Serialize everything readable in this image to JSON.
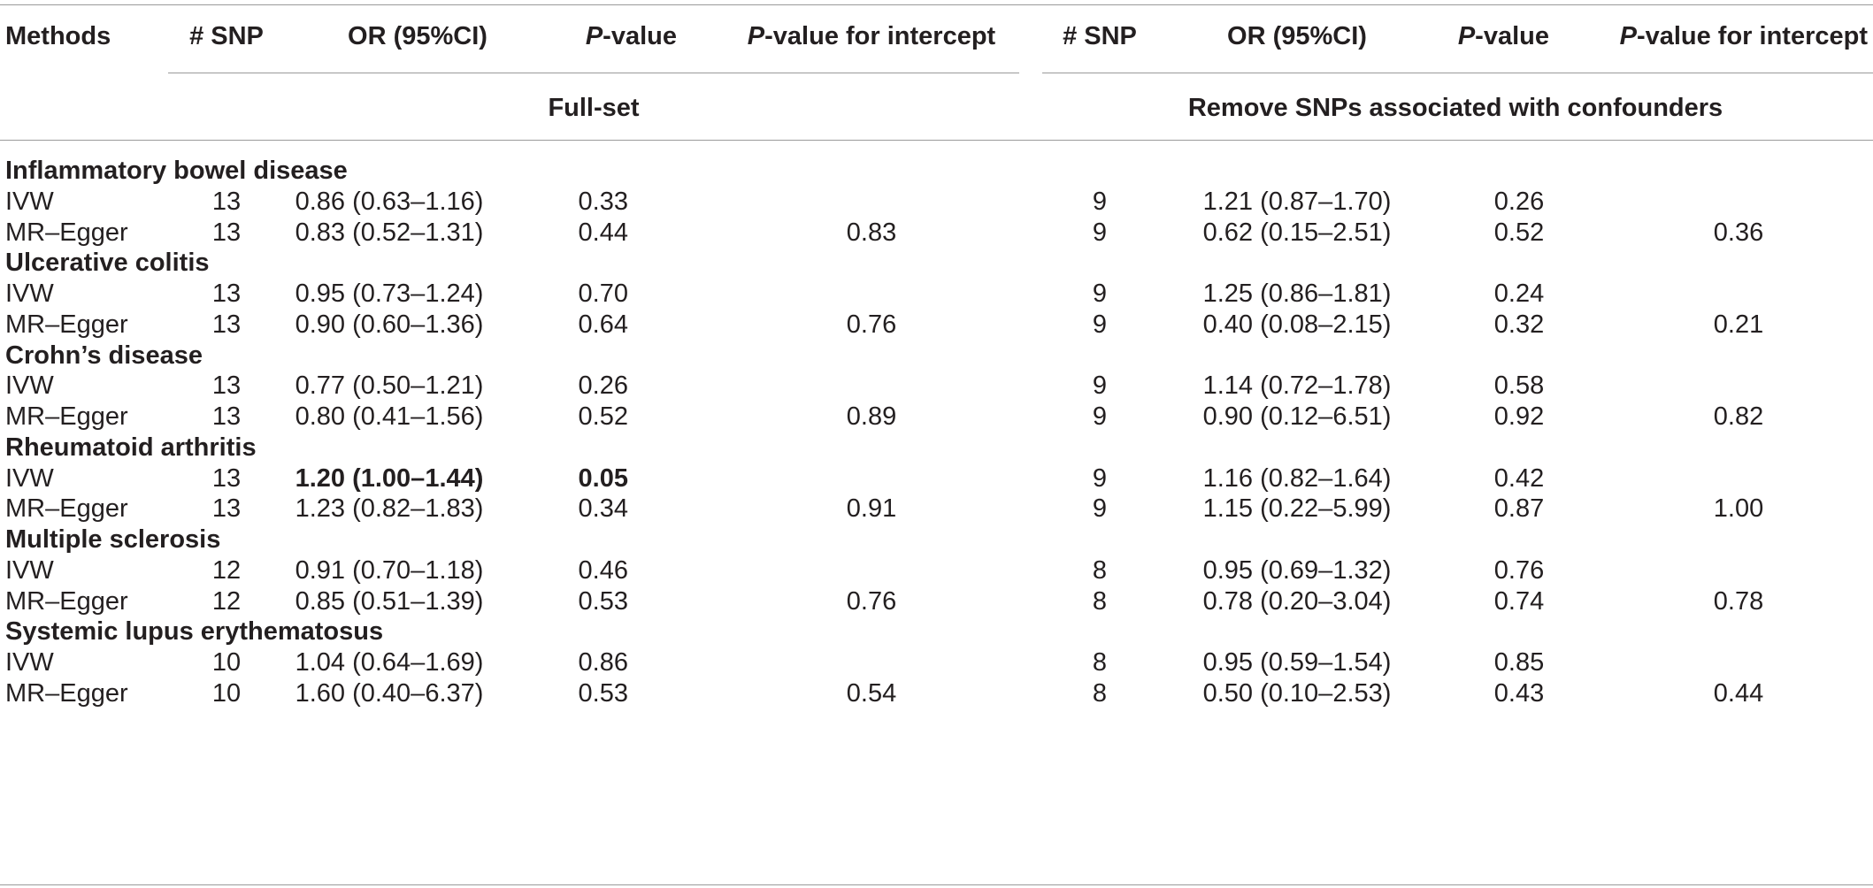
{
  "table": {
    "columns": {
      "methods": "Methods",
      "snp": "# SNP",
      "or": "OR (95%CI)",
      "p_italic": "P",
      "p_rest": "-value",
      "pint_italic": "P",
      "pint_rest": "-value for intercept"
    },
    "groups": {
      "left": "Full-set",
      "right": "Remove SNPs associated with confounders"
    },
    "sections": [
      {
        "title": "Inflammatory bowel disease",
        "rows": [
          {
            "method": "IVW",
            "full": {
              "snp": "13",
              "or": "0.86 (0.63–1.16)",
              "p": "0.33",
              "pint": ""
            },
            "removed": {
              "snp": "9",
              "or": "1.21 (0.87–1.70)",
              "p": "0.26",
              "pint": ""
            }
          },
          {
            "method": "MR–Egger",
            "full": {
              "snp": "13",
              "or": "0.83 (0.52–1.31)",
              "p": "0.44",
              "pint": "0.83"
            },
            "removed": {
              "snp": "9",
              "or": "0.62 (0.15–2.51)",
              "p": "0.52",
              "pint": "0.36"
            }
          }
        ]
      },
      {
        "title": "Ulcerative colitis",
        "rows": [
          {
            "method": "IVW",
            "full": {
              "snp": "13",
              "or": "0.95 (0.73–1.24)",
              "p": "0.70",
              "pint": ""
            },
            "removed": {
              "snp": "9",
              "or": "1.25 (0.86–1.81)",
              "p": "0.24",
              "pint": ""
            }
          },
          {
            "method": "MR–Egger",
            "full": {
              "snp": "13",
              "or": "0.90 (0.60–1.36)",
              "p": "0.64",
              "pint": "0.76"
            },
            "removed": {
              "snp": "9",
              "or": "0.40 (0.08–2.15)",
              "p": "0.32",
              "pint": "0.21"
            }
          }
        ]
      },
      {
        "title": "Crohn’s disease",
        "rows": [
          {
            "method": "IVW",
            "full": {
              "snp": "13",
              "or": "0.77 (0.50–1.21)",
              "p": "0.26",
              "pint": ""
            },
            "removed": {
              "snp": "9",
              "or": "1.14 (0.72–1.78)",
              "p": "0.58",
              "pint": ""
            }
          },
          {
            "method": "MR–Egger",
            "full": {
              "snp": "13",
              "or": "0.80 (0.41–1.56)",
              "p": "0.52",
              "pint": "0.89"
            },
            "removed": {
              "snp": "9",
              "or": "0.90 (0.12–6.51)",
              "p": "0.92",
              "pint": "0.82"
            }
          }
        ]
      },
      {
        "title": "Rheumatoid arthritis",
        "rows": [
          {
            "method": "IVW",
            "full": {
              "snp": "13",
              "or": "1.20 (1.00–1.44)",
              "p": "0.05",
              "pint": "",
              "bold": true
            },
            "removed": {
              "snp": "9",
              "or": "1.16 (0.82–1.64)",
              "p": "0.42",
              "pint": ""
            }
          },
          {
            "method": "MR–Egger",
            "full": {
              "snp": "13",
              "or": "1.23 (0.82–1.83)",
              "p": "0.34",
              "pint": "0.91"
            },
            "removed": {
              "snp": "9",
              "or": "1.15 (0.22–5.99)",
              "p": "0.87",
              "pint": "1.00"
            }
          }
        ]
      },
      {
        "title": "Multiple sclerosis",
        "rows": [
          {
            "method": "IVW",
            "full": {
              "snp": "12",
              "or": "0.91 (0.70–1.18)",
              "p": "0.46",
              "pint": ""
            },
            "removed": {
              "snp": "8",
              "or": "0.95 (0.69–1.32)",
              "p": "0.76",
              "pint": ""
            }
          },
          {
            "method": "MR–Egger",
            "full": {
              "snp": "12",
              "or": "0.85 (0.51–1.39)",
              "p": "0.53",
              "pint": "0.76"
            },
            "removed": {
              "snp": "8",
              "or": "0.78 (0.20–3.04)",
              "p": "0.74",
              "pint": "0.78"
            }
          }
        ]
      },
      {
        "title": "Systemic lupus erythematosus",
        "rows": [
          {
            "method": "IVW",
            "full": {
              "snp": "10",
              "or": "1.04 (0.64–1.69)",
              "p": "0.86",
              "pint": ""
            },
            "removed": {
              "snp": "8",
              "or": "0.95 (0.59–1.54)",
              "p": "0.85",
              "pint": ""
            }
          },
          {
            "method": "MR–Egger",
            "full": {
              "snp": "10",
              "or": "1.60 (0.40–6.37)",
              "p": "0.53",
              "pint": "0.54"
            },
            "removed": {
              "snp": "8",
              "or": "0.50 (0.10–2.53)",
              "p": "0.43",
              "pint": "0.44"
            }
          }
        ]
      }
    ]
  }
}
